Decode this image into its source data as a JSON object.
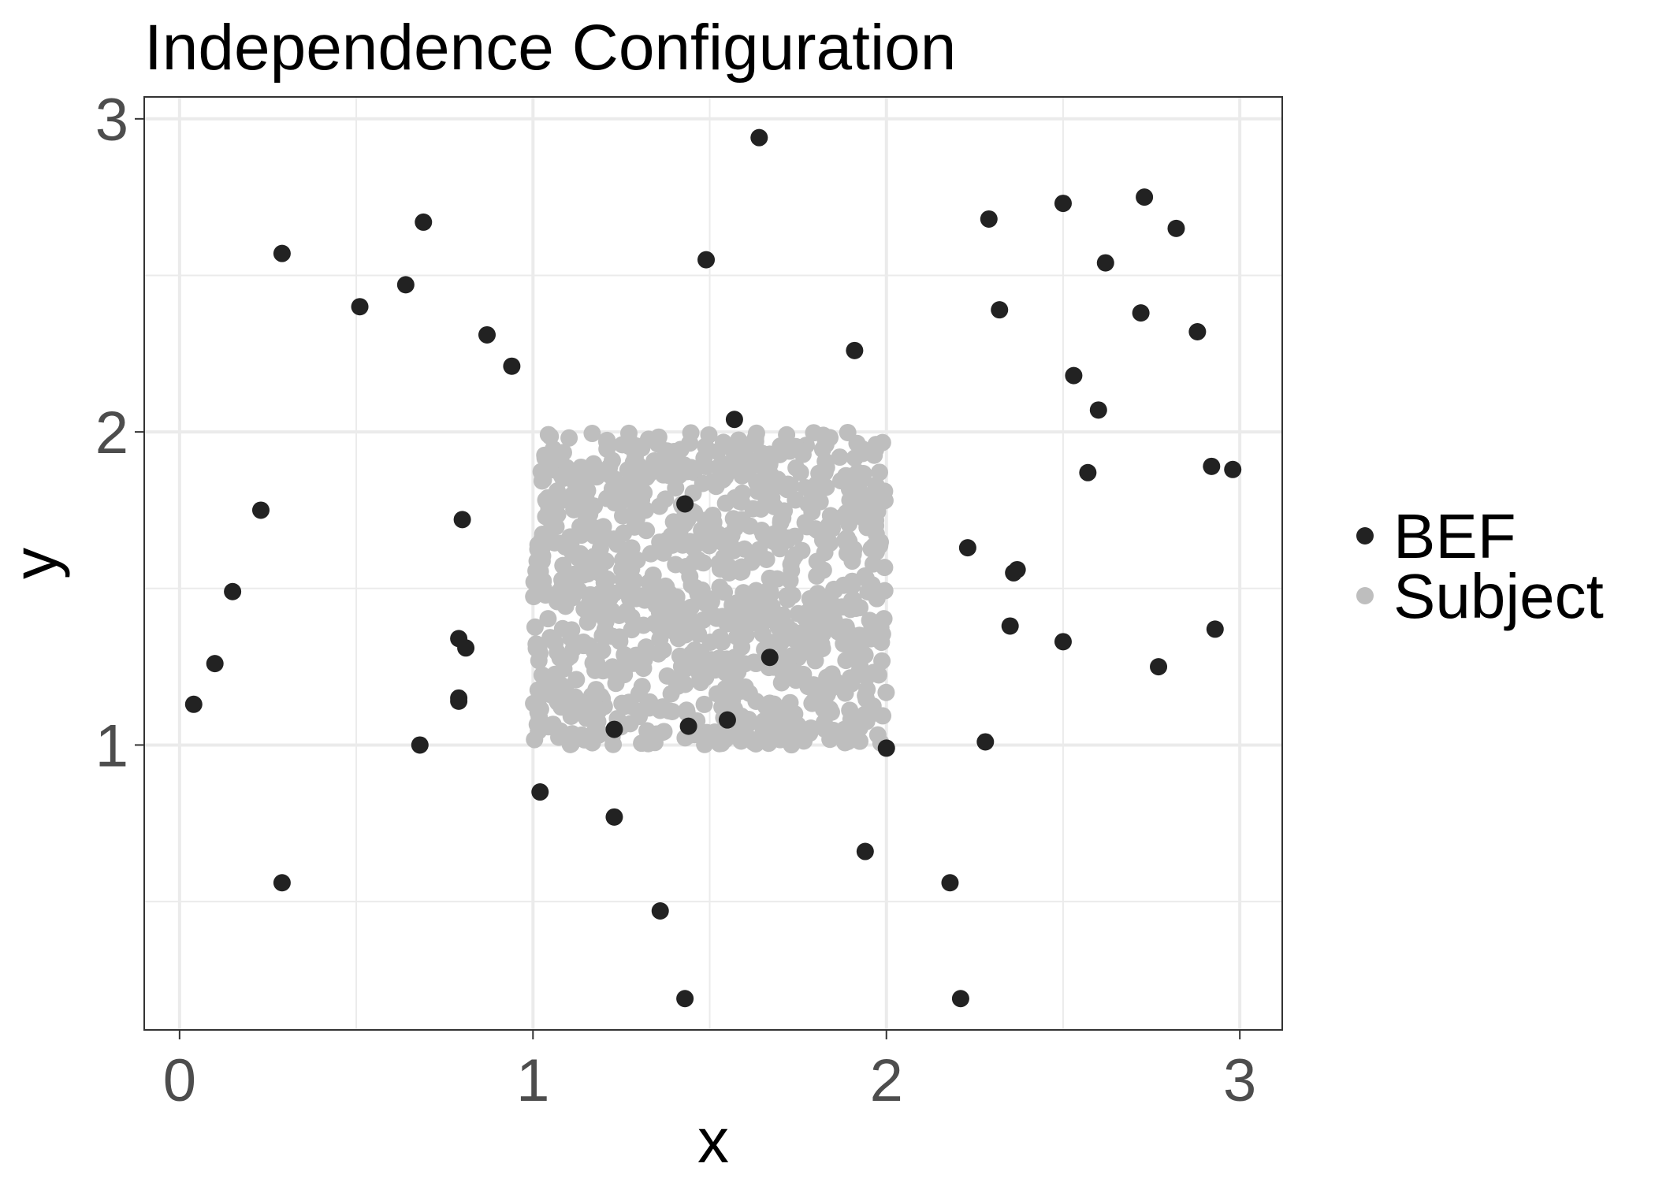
{
  "chart_data": {
    "type": "scatter",
    "title": "Independence Configuration",
    "xlabel": "x",
    "ylabel": "y",
    "xlim": [
      -0.1,
      3.12
    ],
    "ylim": [
      0.09,
      3.07
    ],
    "x_ticks": [
      "0",
      "1",
      "2",
      "3"
    ],
    "y_ticks": [
      "1",
      "2",
      "3"
    ],
    "grid": true,
    "legend_position": "right",
    "series": [
      {
        "name": "BEF",
        "color": "#222222",
        "points": [
          [
            1.64,
            2.94
          ],
          [
            0.29,
            2.57
          ],
          [
            0.69,
            2.67
          ],
          [
            0.64,
            2.47
          ],
          [
            0.51,
            2.4
          ],
          [
            0.87,
            2.31
          ],
          [
            0.94,
            2.21
          ],
          [
            1.49,
            2.55
          ],
          [
            1.91,
            2.26
          ],
          [
            1.57,
            2.04
          ],
          [
            2.29,
            2.68
          ],
          [
            2.5,
            2.73
          ],
          [
            2.73,
            2.75
          ],
          [
            2.82,
            2.65
          ],
          [
            2.62,
            2.54
          ],
          [
            2.32,
            2.39
          ],
          [
            2.72,
            2.38
          ],
          [
            2.88,
            2.32
          ],
          [
            2.53,
            2.18
          ],
          [
            2.6,
            2.07
          ],
          [
            2.57,
            1.87
          ],
          [
            2.92,
            1.89
          ],
          [
            2.98,
            1.88
          ],
          [
            1.43,
            1.77
          ],
          [
            0.23,
            1.75
          ],
          [
            0.8,
            1.72
          ],
          [
            2.23,
            1.63
          ],
          [
            2.37,
            1.56
          ],
          [
            2.36,
            1.55
          ],
          [
            0.15,
            1.49
          ],
          [
            2.35,
            1.38
          ],
          [
            2.93,
            1.37
          ],
          [
            0.79,
            1.34
          ],
          [
            0.81,
            1.31
          ],
          [
            2.5,
            1.33
          ],
          [
            1.67,
            1.28
          ],
          [
            0.1,
            1.26
          ],
          [
            2.77,
            1.25
          ],
          [
            0.79,
            1.15
          ],
          [
            0.79,
            1.14
          ],
          [
            0.04,
            1.13
          ],
          [
            1.55,
            1.08
          ],
          [
            1.44,
            1.06
          ],
          [
            1.23,
            1.05
          ],
          [
            0.68,
            1.0
          ],
          [
            2.28,
            1.01
          ],
          [
            2.0,
            0.99
          ],
          [
            1.02,
            0.85
          ],
          [
            1.23,
            0.77
          ],
          [
            1.94,
            0.66
          ],
          [
            0.29,
            0.56
          ],
          [
            2.18,
            0.56
          ],
          [
            1.36,
            0.47
          ],
          [
            1.43,
            0.19
          ],
          [
            2.21,
            0.19
          ]
        ]
      },
      {
        "name": "Subject",
        "color": "#bebebe",
        "region": {
          "x": [
            1,
            2
          ],
          "y": [
            1,
            2
          ]
        },
        "count": 1000
      }
    ]
  }
}
